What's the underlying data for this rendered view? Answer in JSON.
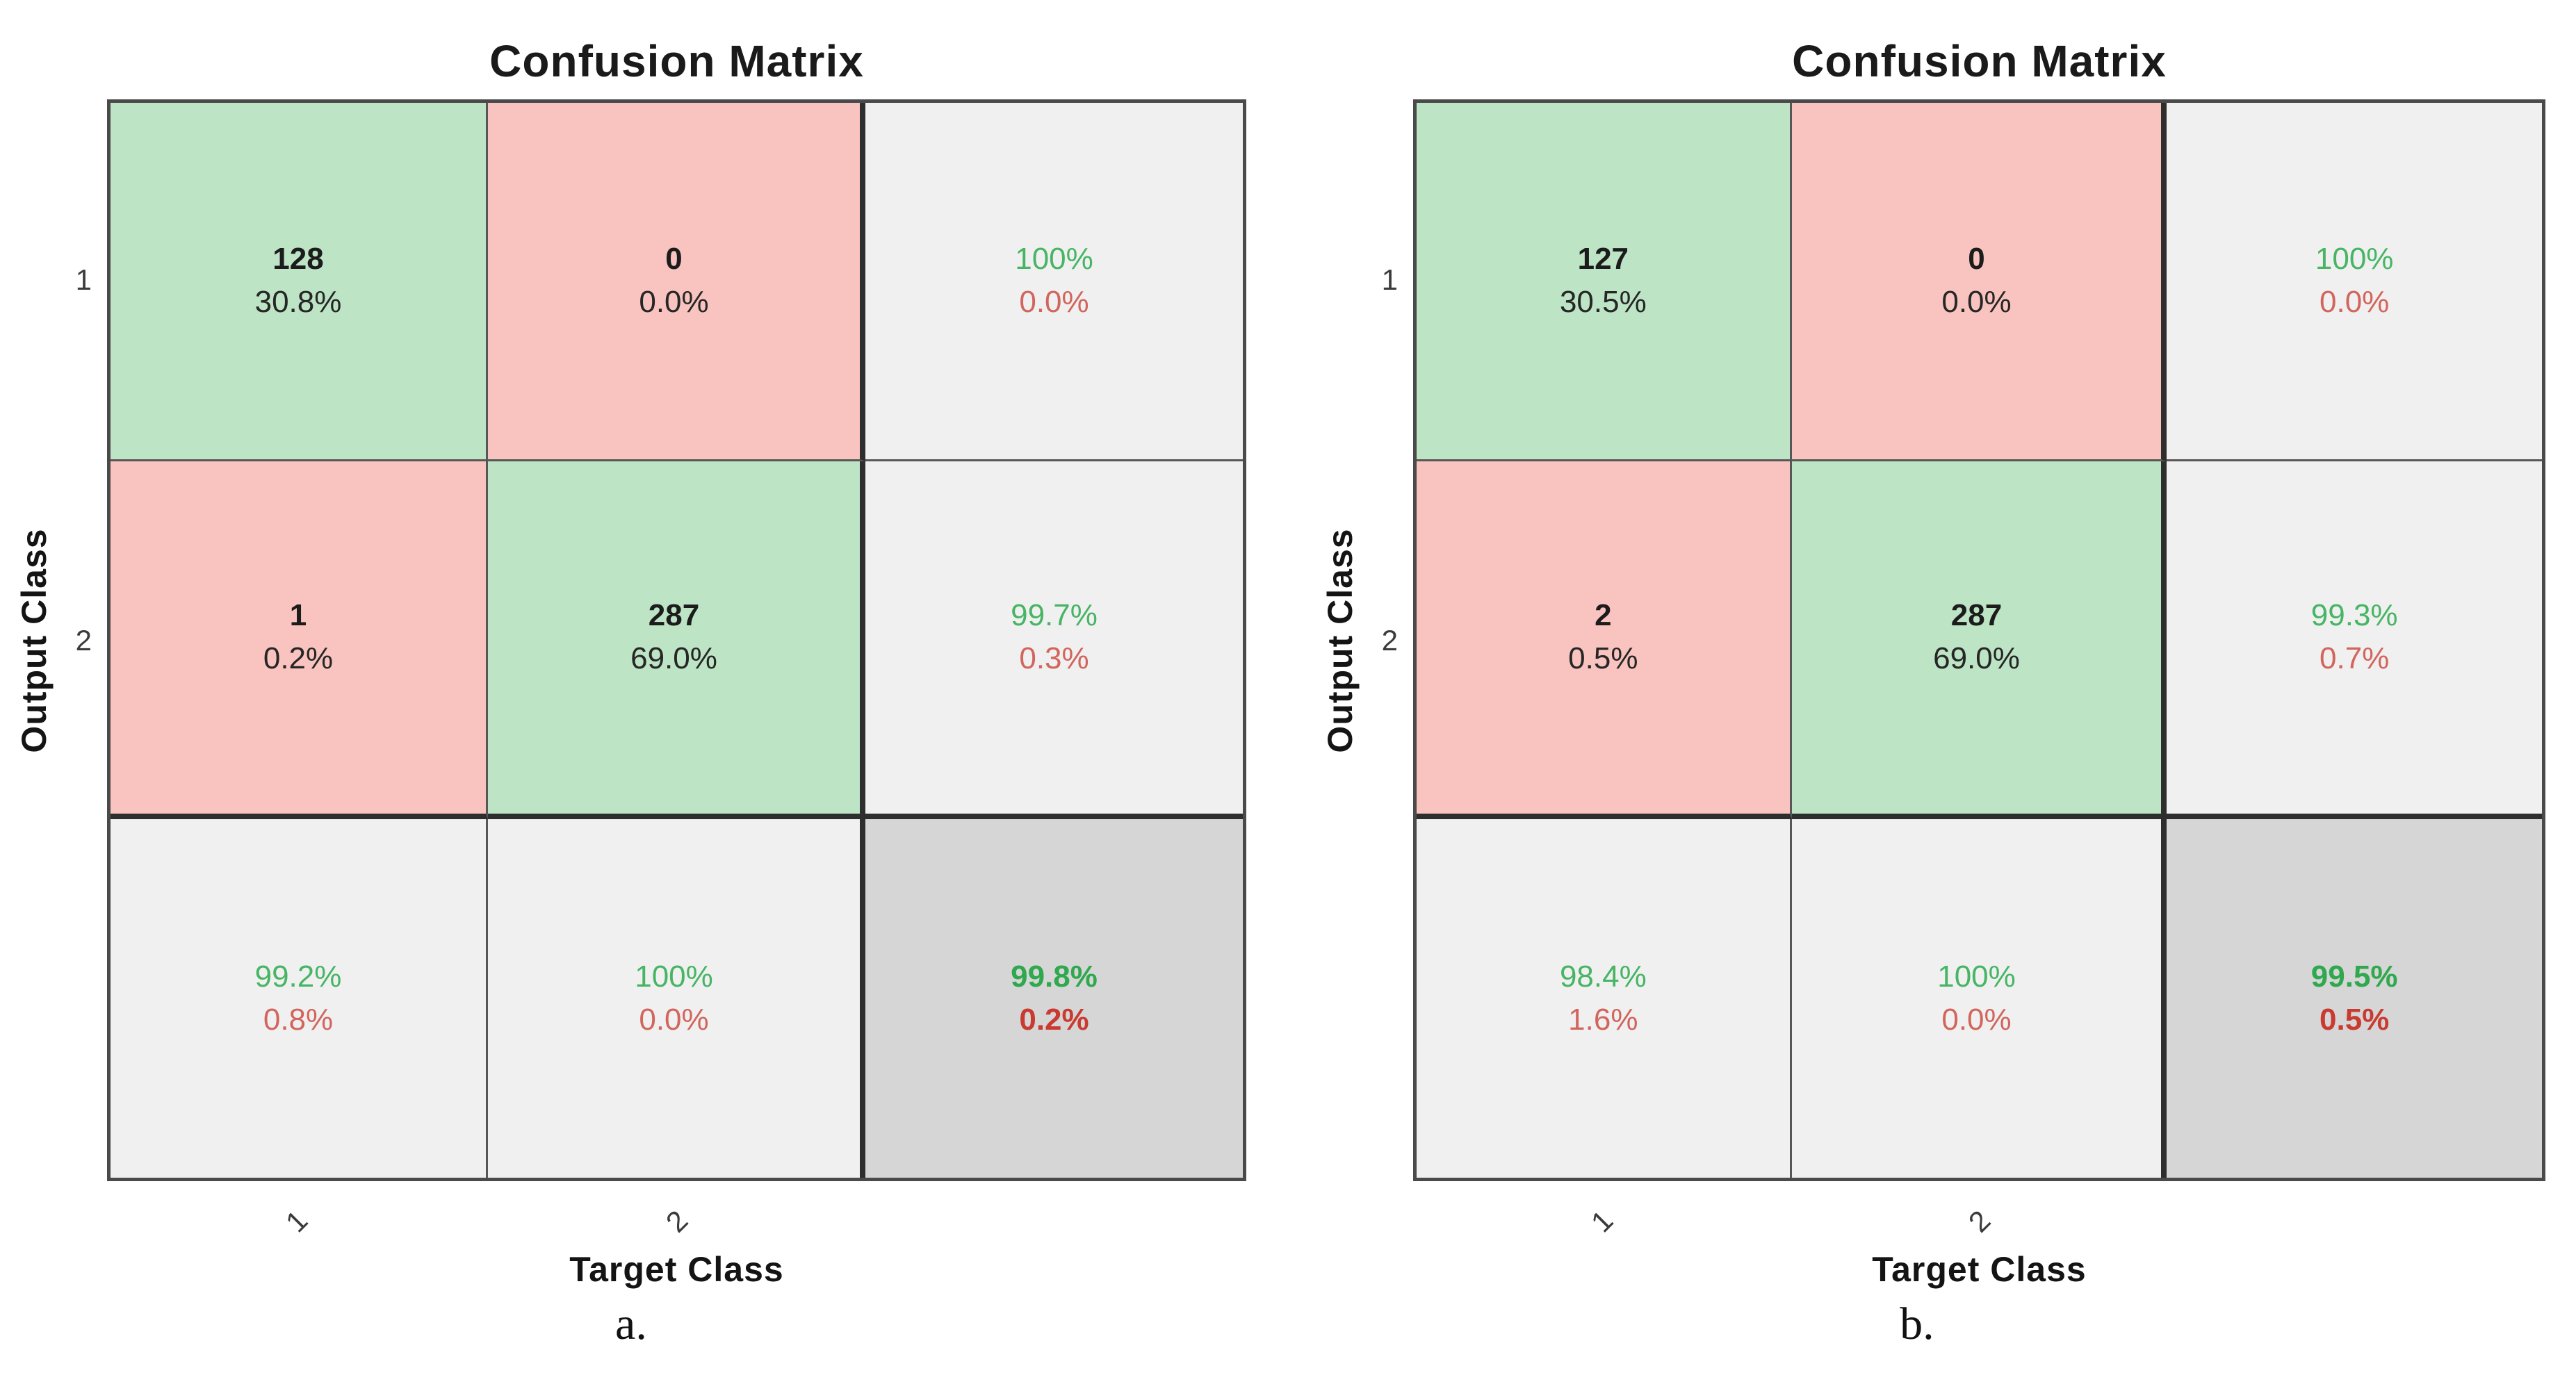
{
  "figure": {
    "background": "#ffffff"
  },
  "colors": {
    "cell_correct_green": "#bce4c5",
    "cell_incorrect_red": "#f9c4bf",
    "cell_summary_gray": "#f0f0f0",
    "cell_total_gray": "#d6d6d6",
    "text_green": "#47b564",
    "text_red": "#d2655c",
    "text_green_bold": "#2fa84e",
    "text_red_bold": "#c93a31",
    "grid_line": "#575757",
    "separator_line": "#2e2e2e"
  },
  "panels": [
    {
      "caption": "a.",
      "title": "Confusion Matrix",
      "x_label": "Target Class",
      "y_label": "Output Class",
      "x_ticks": [
        "1",
        "2"
      ],
      "y_ticks": [
        "1",
        "2"
      ],
      "cells": [
        {
          "type": "correct-count",
          "line1": "128",
          "line2": "30.8%"
        },
        {
          "type": "incorrect-count",
          "line1": "0",
          "line2": "0.0%"
        },
        {
          "type": "row-summary",
          "line1": "100%",
          "line2": "0.0%"
        },
        {
          "type": "incorrect-count",
          "line1": "1",
          "line2": "0.2%"
        },
        {
          "type": "correct-count",
          "line1": "287",
          "line2": "69.0%"
        },
        {
          "type": "row-summary",
          "line1": "99.7%",
          "line2": "0.3%"
        },
        {
          "type": "col-summary",
          "line1": "99.2%",
          "line2": "0.8%"
        },
        {
          "type": "col-summary",
          "line1": "100%",
          "line2": "0.0%"
        },
        {
          "type": "total-summary",
          "line1": "99.8%",
          "line2": "0.2%"
        }
      ]
    },
    {
      "caption": "b.",
      "title": "Confusion Matrix",
      "x_label": "Target Class",
      "y_label": "Output Class",
      "x_ticks": [
        "1",
        "2"
      ],
      "y_ticks": [
        "1",
        "2"
      ],
      "cells": [
        {
          "type": "correct-count",
          "line1": "127",
          "line2": "30.5%"
        },
        {
          "type": "incorrect-count",
          "line1": "0",
          "line2": "0.0%"
        },
        {
          "type": "row-summary",
          "line1": "100%",
          "line2": "0.0%"
        },
        {
          "type": "incorrect-count",
          "line1": "2",
          "line2": "0.5%"
        },
        {
          "type": "correct-count",
          "line1": "287",
          "line2": "69.0%"
        },
        {
          "type": "row-summary",
          "line1": "99.3%",
          "line2": "0.7%"
        },
        {
          "type": "col-summary",
          "line1": "98.4%",
          "line2": "1.6%"
        },
        {
          "type": "col-summary",
          "line1": "100%",
          "line2": "0.0%"
        },
        {
          "type": "total-summary",
          "line1": "99.5%",
          "line2": "0.5%"
        }
      ]
    }
  ],
  "chart_data": [
    {
      "type": "heatmap",
      "title": "Confusion Matrix",
      "xlabel": "Target Class",
      "ylabel": "Output Class",
      "categories": [
        "1",
        "2"
      ],
      "matrix_counts": [
        [
          128,
          0
        ],
        [
          1,
          287
        ]
      ],
      "matrix_percent_of_total": [
        [
          "30.8%",
          "0.0%"
        ],
        [
          "0.2%",
          "69.0%"
        ]
      ],
      "output_class_rates_green_red": [
        [
          "100%",
          "0.0%"
        ],
        [
          "99.7%",
          "0.3%"
        ]
      ],
      "target_class_rates_green_red": [
        [
          "99.2%",
          "0.8%"
        ],
        [
          "100%",
          "0.0%"
        ]
      ],
      "overall_accuracy_green_red": [
        "99.8%",
        "0.2%"
      ],
      "caption": "a.",
      "legend_position": "none",
      "grid": true
    },
    {
      "type": "heatmap",
      "title": "Confusion Matrix",
      "xlabel": "Target Class",
      "ylabel": "Output Class",
      "categories": [
        "1",
        "2"
      ],
      "matrix_counts": [
        [
          127,
          0
        ],
        [
          2,
          287
        ]
      ],
      "matrix_percent_of_total": [
        [
          "30.5%",
          "0.0%"
        ],
        [
          "0.5%",
          "69.0%"
        ]
      ],
      "output_class_rates_green_red": [
        [
          "100%",
          "0.0%"
        ],
        [
          "99.3%",
          "0.7%"
        ]
      ],
      "target_class_rates_green_red": [
        [
          "98.4%",
          "1.6%"
        ],
        [
          "100%",
          "0.0%"
        ]
      ],
      "overall_accuracy_green_red": [
        "99.5%",
        "0.5%"
      ],
      "caption": "b.",
      "legend_position": "none",
      "grid": true
    }
  ]
}
